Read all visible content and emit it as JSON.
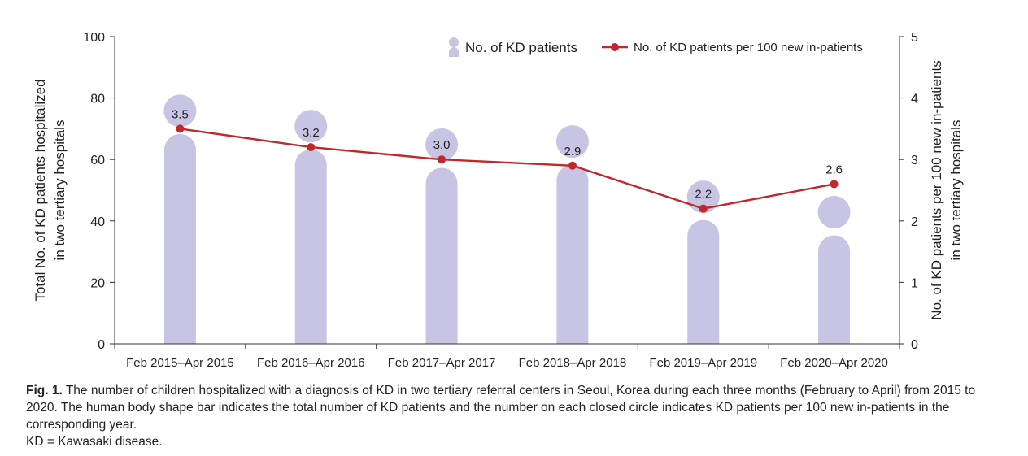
{
  "chart_data": {
    "type": "bar",
    "categories": [
      "Feb 2015–Apr 2015",
      "Feb 2016–Apr 2016",
      "Feb 2017–Apr 2017",
      "Feb 2018–Apr 2018",
      "Feb 2019–Apr 2019",
      "Feb 2020–Apr 2020"
    ],
    "series": [
      {
        "name": "No. of KD patients",
        "type": "bar",
        "axis": "left",
        "values": [
          81,
          76,
          70,
          71,
          53,
          48
        ],
        "color": "#c8c4e3"
      },
      {
        "name": "No. of KD patients per 100 new in-patients",
        "type": "line",
        "axis": "right",
        "values": [
          3.5,
          3.2,
          3.0,
          2.9,
          2.2,
          2.6
        ],
        "labels": [
          "3.5",
          "3.2",
          "3.0",
          "2.9",
          "2.2",
          "2.6"
        ],
        "color": "#c0282c"
      }
    ],
    "ylabel_left": [
      "Total No. of KD patients hospitalized",
      "in two tertiary hospitals"
    ],
    "ylabel_right": [
      "No. of KD patients per 100 new in-patients",
      "in two tertiary hospitals"
    ],
    "ylim_left": [
      0,
      100
    ],
    "yticks_left": [
      "0",
      "20",
      "40",
      "60",
      "80",
      "100"
    ],
    "ylim_right": [
      0,
      5
    ],
    "yticks_right": [
      "0",
      "1",
      "2",
      "3",
      "4",
      "5"
    ],
    "legend_position": "top-right",
    "grid": false
  },
  "caption": {
    "label": "Fig. 1.",
    "text": "The number of children hospitalized with a diagnosis of KD in two tertiary referral centers in Seoul, Korea during each three months (February to April) from 2015 to 2020. The human body shape bar indicates the total number of KD patients and the number on each closed circle indicates KD patients per 100 new in-patients in the corresponding year.",
    "abbreviation": "KD = Kawasaki disease."
  }
}
